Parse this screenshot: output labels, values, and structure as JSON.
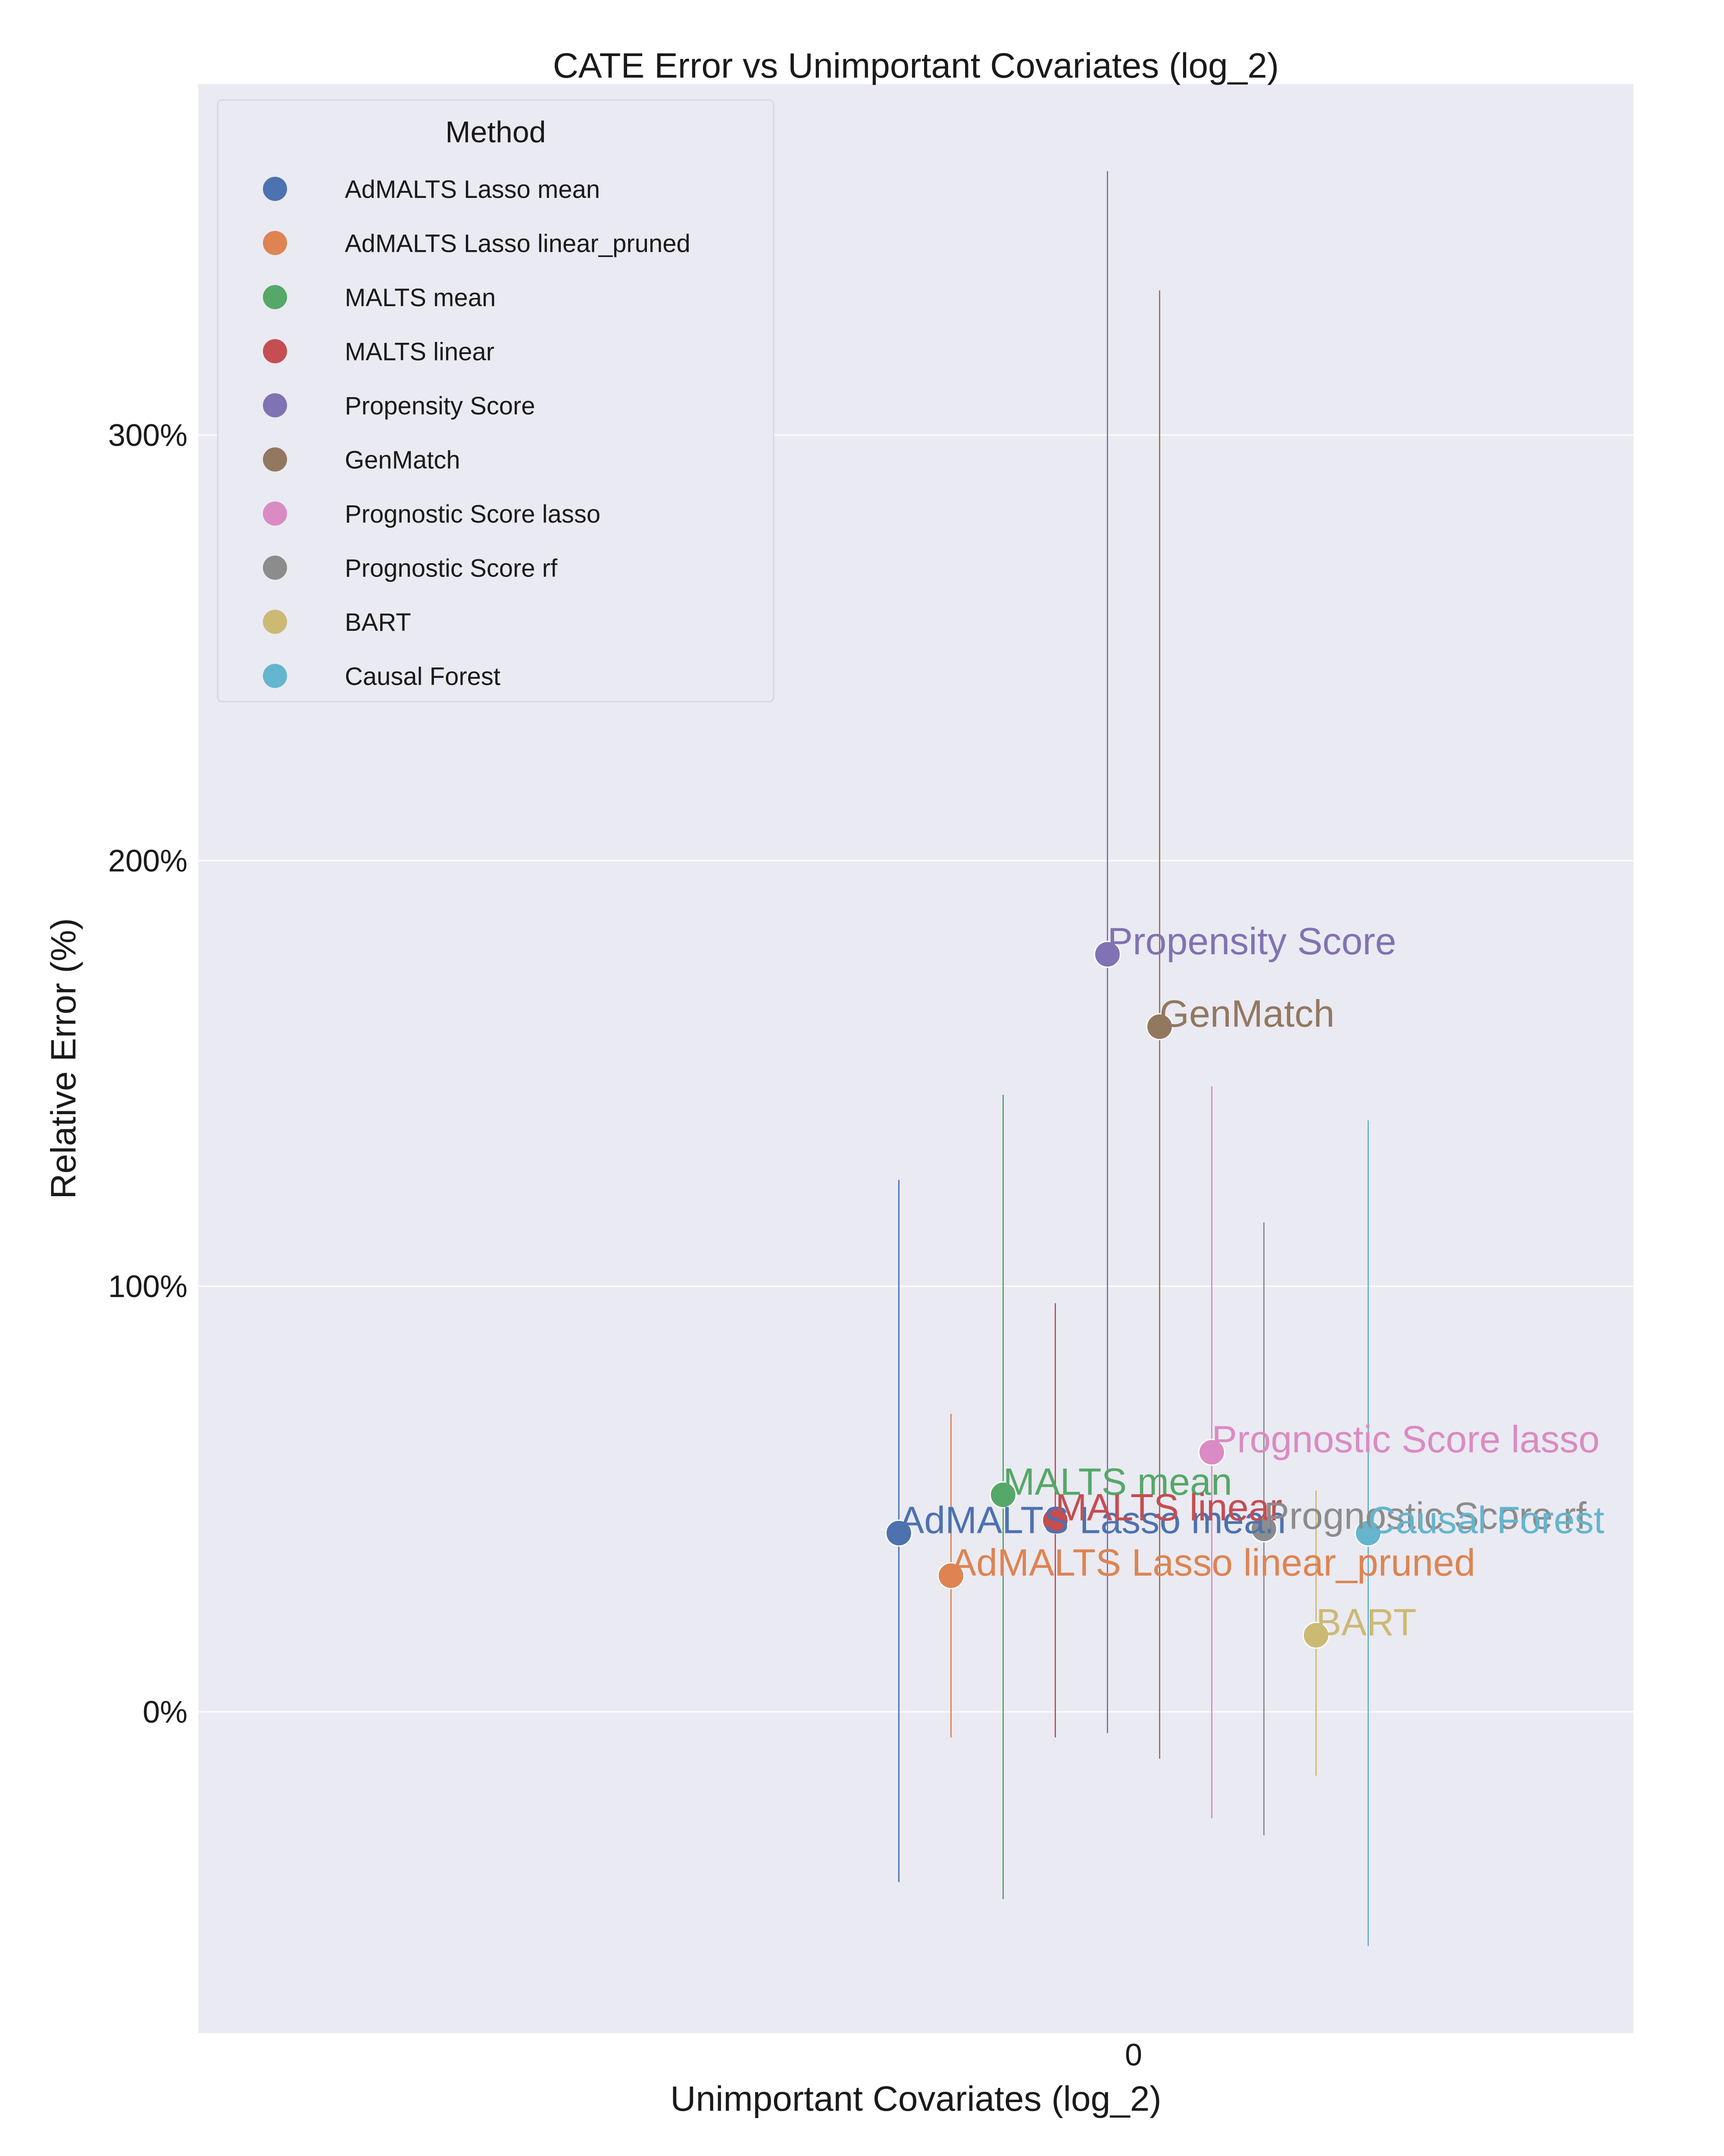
{
  "chart_data": {
    "type": "scatter",
    "title": "CATE Error vs Unimportant Covariates (log_2)",
    "xlabel": "Unimportant Covariates (log_2)",
    "ylabel": "Relative Error (%)",
    "x_ticks": [
      "0"
    ],
    "y_ticks": [
      {
        "value": 0,
        "label": "0%"
      },
      {
        "value": 100,
        "label": "100%"
      },
      {
        "value": 200,
        "label": "200%"
      },
      {
        "value": 300,
        "label": "300%"
      }
    ],
    "ylim": [
      -75,
      383
    ],
    "grid": true,
    "legend": {
      "title": "Method",
      "position": "top-left"
    },
    "series": [
      {
        "name": "AdMALTS Lasso mean",
        "color": "#4c72b0",
        "x": 0,
        "y": 42,
        "err_low": -40,
        "err_high": 125
      },
      {
        "name": "AdMALTS Lasso linear_pruned",
        "color": "#dd8452",
        "x": 0,
        "y": 32,
        "err_low": -6,
        "err_high": 70
      },
      {
        "name": "MALTS mean",
        "color": "#55a868",
        "x": 0,
        "y": 51,
        "err_low": -44,
        "err_high": 145
      },
      {
        "name": "MALTS linear",
        "color": "#c44e52",
        "x": 0,
        "y": 45,
        "err_low": -6,
        "err_high": 96
      },
      {
        "name": "Propensity Score",
        "color": "#8172b3",
        "x": 0,
        "y": 178,
        "err_low": -5,
        "err_high": 362
      },
      {
        "name": "GenMatch",
        "color": "#937860",
        "x": 0,
        "y": 161,
        "err_low": -11,
        "err_high": 334
      },
      {
        "name": "Prognostic Score lasso",
        "color": "#da8bc3",
        "x": 0,
        "y": 61,
        "err_low": -25,
        "err_high": 147
      },
      {
        "name": "Prognostic Score rf",
        "color": "#8c8c8c",
        "x": 0,
        "y": 43,
        "err_low": -29,
        "err_high": 115
      },
      {
        "name": "BART",
        "color": "#ccb974",
        "x": 0,
        "y": 18,
        "err_low": -15,
        "err_high": 52
      },
      {
        "name": "Causal Forest",
        "color": "#64b5cd",
        "x": 0,
        "y": 42,
        "err_low": -55,
        "err_high": 139
      }
    ],
    "colors": {
      "plot_background": "#eaeaf2",
      "grid": "#ffffff"
    }
  }
}
